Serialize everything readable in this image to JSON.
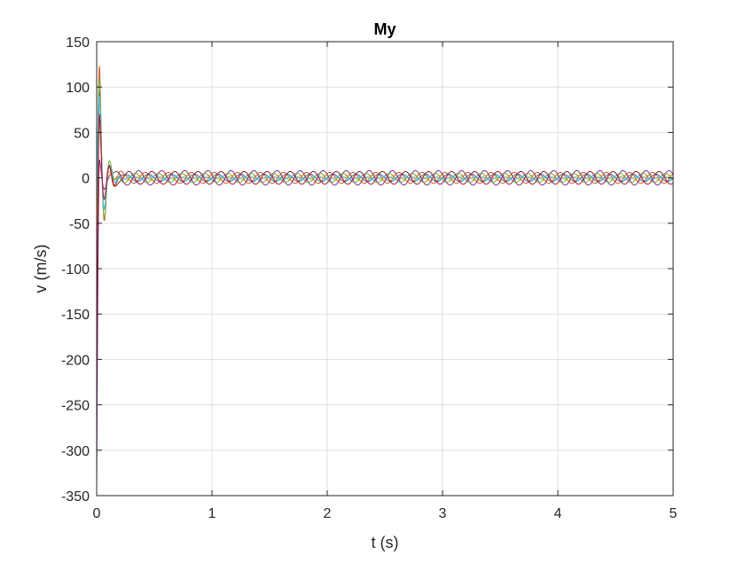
{
  "chart_data": {
    "type": "line",
    "title": "My",
    "xlabel": "t (s)",
    "ylabel": "v (m/s)",
    "xlim": [
      0,
      5
    ],
    "ylim": [
      -350,
      150
    ],
    "xticks": [
      0,
      1,
      2,
      3,
      4,
      5
    ],
    "yticks": [
      150,
      100,
      50,
      0,
      -50,
      -100,
      -150,
      -200,
      -250,
      -300,
      -350
    ],
    "grid": true,
    "legend": "none",
    "steady_state": {
      "amplitude_range": [
        2,
        8
      ],
      "period_s": 0.2,
      "transient_end_s": 0.3
    },
    "series": [
      {
        "color": "#0072BD",
        "initial_value": -300,
        "first_peak": 95,
        "steady_amplitude": 4
      },
      {
        "color": "#D95319",
        "initial_value": -70,
        "first_peak": 123,
        "steady_amplitude": 6
      },
      {
        "color": "#EDB120",
        "initial_value": -60,
        "first_peak": 60,
        "steady_amplitude": 3
      },
      {
        "color": "#7E2F8E",
        "initial_value": -340,
        "first_peak": 20,
        "steady_amplitude": 8
      },
      {
        "color": "#77AC30",
        "initial_value": -40,
        "first_peak": 110,
        "steady_amplitude": 5
      },
      {
        "color": "#4DBEEE",
        "initial_value": -20,
        "first_peak": 90,
        "steady_amplitude": 2
      },
      {
        "color": "#A2142F",
        "initial_value": -230,
        "first_peak": 70,
        "steady_amplitude": 7
      }
    ]
  }
}
